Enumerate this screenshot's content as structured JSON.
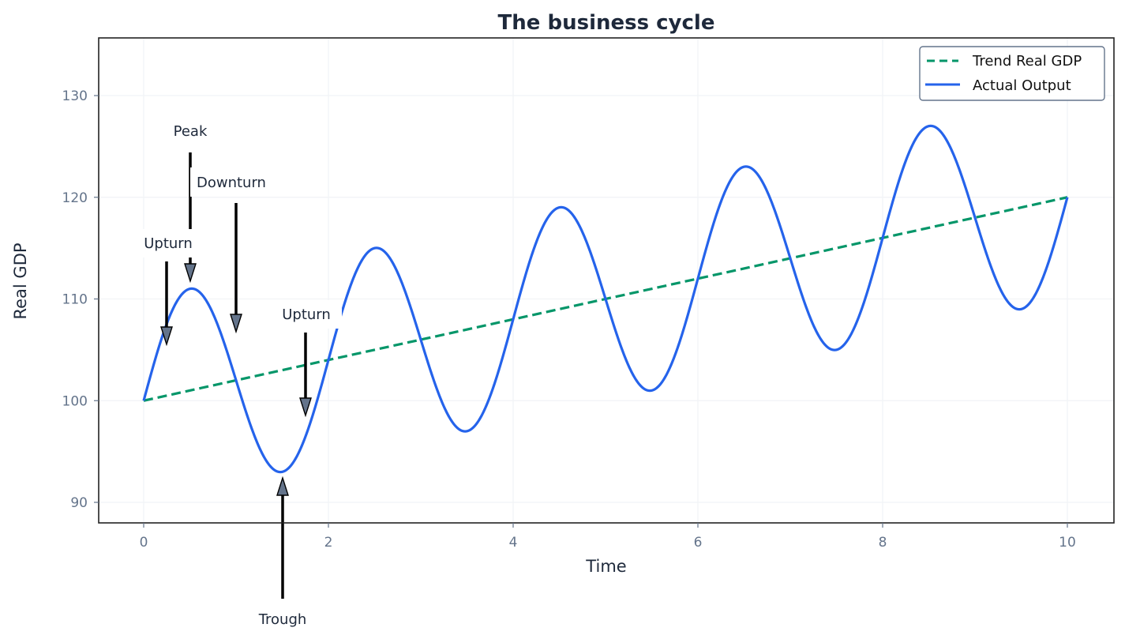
{
  "chart_data": {
    "type": "line",
    "title": "The business cycle",
    "xlabel": "Time",
    "ylabel": "Real GDP",
    "xlim": [
      -0.5,
      10.5
    ],
    "ylim": [
      88,
      135.5
    ],
    "xticks": [
      0,
      2,
      4,
      6,
      8,
      10
    ],
    "yticks": [
      90,
      100,
      110,
      120,
      130
    ],
    "grid": true,
    "legend_position": "upper right",
    "series": [
      {
        "name": "Trend Real GDP",
        "style": "dashed",
        "color": "#059669",
        "formula": "100 + 2t",
        "x": [
          0,
          10
        ],
        "values": [
          100,
          120
        ]
      },
      {
        "name": "Actual Output",
        "style": "solid",
        "color": "#2563eb",
        "formula": "100 + 2t + 10*sin(pi*t)",
        "x": [
          0,
          0.5,
          1,
          1.5,
          2,
          2.5,
          3,
          3.5,
          4,
          4.5,
          5,
          5.5,
          6,
          6.5,
          7,
          7.5,
          8,
          8.5,
          9,
          9.5,
          10
        ],
        "values": [
          100,
          111,
          102,
          93,
          104,
          115,
          106,
          97,
          108,
          119,
          110,
          101,
          112,
          123,
          114,
          105,
          116,
          127,
          118,
          109,
          120
        ]
      }
    ],
    "annotations": [
      {
        "text": "Peak",
        "text_xy": [
          0.5,
          126
        ],
        "arrow_to": [
          0.5,
          111.5
        ],
        "direction": "down"
      },
      {
        "text": "Downturn",
        "text_xy": [
          0.58,
          121
        ],
        "arrow_from": [
          1.0,
          119.4
        ],
        "arrow_to": [
          1.0,
          106.8
        ],
        "direction": "down"
      },
      {
        "text": "Upturn",
        "text_xy": [
          0.25,
          115
        ],
        "arrow_from": [
          0.25,
          113.6
        ],
        "arrow_to": [
          0.25,
          105.5
        ],
        "direction": "down"
      },
      {
        "text": "Upturn",
        "text_xy": [
          1.75,
          108
        ],
        "arrow_from": [
          1.75,
          106.7
        ],
        "arrow_to": [
          1.75,
          98.5
        ],
        "direction": "down"
      },
      {
        "text": "Trough",
        "text_xy": [
          1.5,
          80
        ],
        "arrow_from": [
          1.5,
          82
        ],
        "arrow_to": [
          1.5,
          92.5
        ],
        "direction": "up"
      }
    ]
  },
  "colors": {
    "trend": "#059669",
    "actual": "#2563eb",
    "arrow_head": "#64748b",
    "text": "#1e293b",
    "ticks": "#64748b"
  }
}
